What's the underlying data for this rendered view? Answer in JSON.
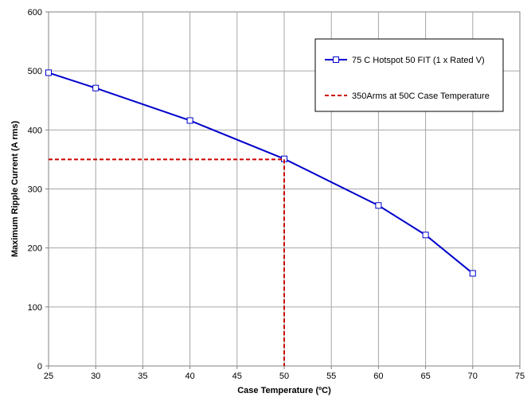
{
  "chart_data": {
    "type": "line",
    "xlabel": "Case Temperature (ºC)",
    "ylabel": "Maximum Ripple Current (A rms)",
    "xlim": [
      25,
      75
    ],
    "ylim": [
      0,
      600
    ],
    "x_ticks": [
      "25",
      "30",
      "35",
      "40",
      "45",
      "50",
      "55",
      "60",
      "65",
      "70",
      "75"
    ],
    "y_ticks": [
      "0",
      "100",
      "200",
      "300",
      "400",
      "500",
      "600"
    ],
    "grid": true,
    "legend_position": "top-right",
    "series": [
      {
        "name": "75 C Hotspot 50 FIT (1 x Rated V)",
        "color": "#0000CC",
        "marker": "open-square",
        "x": [
          25,
          30,
          40,
          50,
          60,
          65,
          70
        ],
        "y": [
          497,
          471,
          416,
          351,
          272,
          222,
          157
        ]
      },
      {
        "name": "350Arms at 50C Case Temperature",
        "color": "#CC0000",
        "style": "dashed",
        "x": [
          25,
          50,
          50
        ],
        "y": [
          350,
          350,
          0
        ]
      }
    ]
  }
}
